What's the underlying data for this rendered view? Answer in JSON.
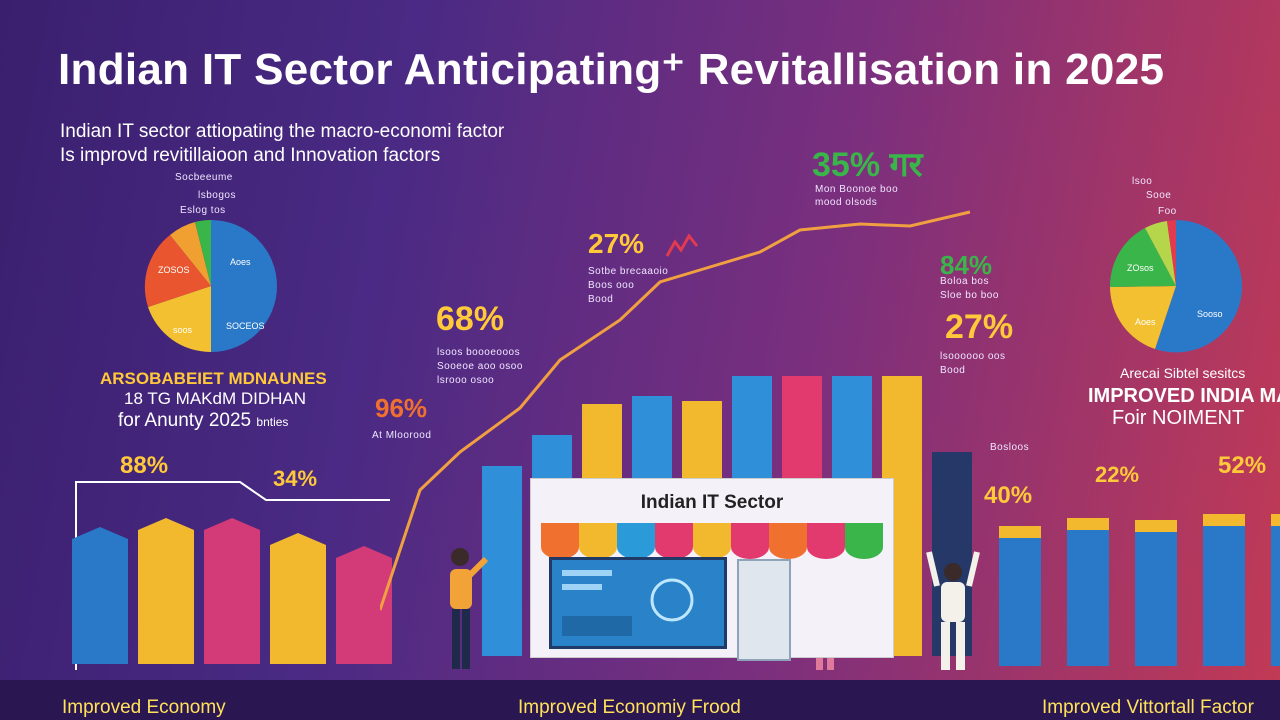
{
  "title": "Indian IT Sector Anticipating⁺ Revitallisation in 2025",
  "subtitle_line1": "Indian IT sector attiopating the macro-economi factor",
  "subtitle_line2": "Is improvd revitillaioon and Innovation factors",
  "left_pie": {
    "labels": [
      "Socbeeume",
      "lsbogos",
      "Eslog tos"
    ],
    "slice_labels": [
      "ZOSOS",
      "Aoes",
      "soos",
      "SOCEOS"
    ]
  },
  "left_block": {
    "line1": "ARSOBABEIET MDNAUNES",
    "line2": "18 TG MAKdM DIDHAN",
    "line3": "for Anunty 2025",
    "line3_suffix": "bnties"
  },
  "left_bars": {
    "pct_88": "88%",
    "pct_34": "34%",
    "colors": [
      "#2a79c9",
      "#f2b92e",
      "#d23a78",
      "#f2b92e",
      "#d23a78"
    ],
    "levels": [
      0.72,
      0.77,
      0.77,
      0.69,
      0.62
    ]
  },
  "center": {
    "pct_35": "35% गर",
    "label_35a": "Mon Boonoe boo",
    "label_35b": "mood olsods",
    "pct_27a": "27%",
    "label_27a1": "Sotbe brecaaoio",
    "label_27a2": "Boos ooo",
    "label_27a3": "Bood",
    "pct_68": "68%",
    "label_68a": "lsoos boooeooos",
    "label_68b": "Sooeoe aoo osoo",
    "label_68c": "lsrooo osoo",
    "pct_96": "96%",
    "label_96": "At Mloorood",
    "store_sign": "Indian IT Sector"
  },
  "center_bars": {
    "colors": [
      "#2f8fd8",
      "#2f8fd8",
      "#f2b92e",
      "#2f8fd8",
      "#f2b92e",
      "#2f8fd8",
      "#e23a6e",
      "#2f8fd8",
      "#f2b92e",
      "#253868"
    ],
    "levels": [
      0.68,
      0.79,
      0.9,
      0.93,
      0.91,
      1.0,
      1.0,
      1.0,
      1.0,
      0.73
    ]
  },
  "right": {
    "pct_84": "84%",
    "label_84a": "Boloa bos",
    "label_84b": "Sloe bo boo",
    "pct_27b": "27%",
    "label_27b1": "lsoooooo oos",
    "label_27b2": "Bood",
    "pie_labels": [
      "lsoo",
      "Sooe",
      "Foo"
    ],
    "pie_slice_labels": [
      "ZOsos",
      "Aoes",
      "Sooso"
    ],
    "caption1": "Arecai Sibtel sesitcs",
    "caption2": "IMPROVED INDIA MA",
    "caption3": "Foir NOIMENT",
    "small_label": "Bosloos",
    "pct_22": "22%",
    "pct_40": "40%",
    "pct_52": "52%",
    "bar_levels": [
      0.7,
      0.74,
      0.73,
      0.76,
      0.76
    ]
  },
  "footer": {
    "left": "Improved Economy",
    "center": "Improved Economiy Frood",
    "right": "Improved Vittortall Factor"
  },
  "palette": {
    "yellow": "#ffc93a",
    "blue": "#2a79c9",
    "pink": "#d23a78",
    "green": "#3ab54a",
    "trend_line": "#f0a040"
  }
}
